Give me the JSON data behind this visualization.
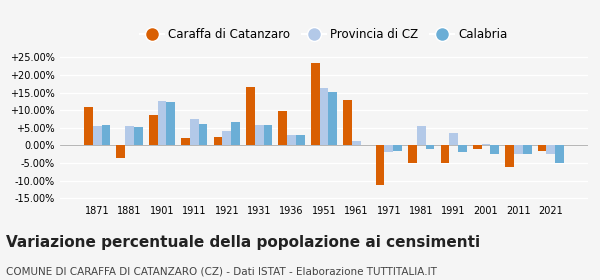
{
  "years": [
    1871,
    1881,
    1901,
    1911,
    1921,
    1931,
    1936,
    1951,
    1961,
    1971,
    1981,
    1991,
    2001,
    2011,
    2021
  ],
  "caraffa": [
    10.8,
    -3.5,
    8.7,
    2.2,
    2.5,
    16.5,
    9.7,
    23.5,
    12.8,
    -11.2,
    -5.0,
    -5.1,
    -0.9,
    -6.2,
    -1.5
  ],
  "provincia": [
    5.5,
    5.5,
    12.7,
    7.5,
    4.0,
    5.7,
    3.0,
    16.2,
    1.3,
    -1.8,
    5.6,
    3.5,
    0.5,
    -2.5,
    -2.5
  ],
  "calabria": [
    5.8,
    5.2,
    12.3,
    6.0,
    6.5,
    5.8,
    3.0,
    15.2,
    null,
    -1.5,
    -1.0,
    -2.0,
    -2.5,
    -2.5,
    -5.0
  ],
  "color_caraffa": "#d95f02",
  "color_provincia": "#b3c9e8",
  "color_calabria": "#6baed6",
  "title": "Variazione percentuale della popolazione ai censimenti",
  "subtitle": "COMUNE DI CARAFFA DI CATANZARO (CZ) - Dati ISTAT - Elaborazione TUTTITALIA.IT",
  "legend_labels": [
    "Caraffa di Catanzaro",
    "Provincia di CZ",
    "Calabria"
  ],
  "ylim": [
    -16,
    27
  ],
  "yticks": [
    -15,
    -10,
    -5,
    0,
    5,
    10,
    15,
    20,
    25
  ],
  "ytick_labels": [
    "-15.00%",
    "-10.00%",
    "-5.00%",
    "0.00%",
    "+5.00%",
    "+10.00%",
    "+15.00%",
    "+20.00%",
    "+25.00%"
  ],
  "bar_width": 0.27,
  "background_color": "#f5f5f5",
  "grid_color": "#ffffff",
  "title_fontsize": 11,
  "subtitle_fontsize": 7.5
}
